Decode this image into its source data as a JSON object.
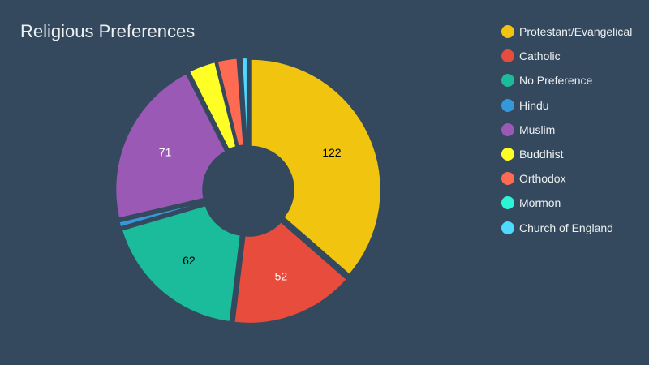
{
  "title": "Religious Preferences",
  "colors": {
    "background": "#34495e",
    "text": "#ecf0f1"
  },
  "legend": [
    {
      "label": "Protestant/Evangelical",
      "color": "#f1c40f"
    },
    {
      "label": "Catholic",
      "color": "#e74c3c"
    },
    {
      "label": "No Preference",
      "color": "#1abc9c"
    },
    {
      "label": "Hindu",
      "color": "#3498db"
    },
    {
      "label": "Muslim",
      "color": "#9b59b6"
    },
    {
      "label": "Buddhist",
      "color": "#ffff26"
    },
    {
      "label": "Orthodox",
      "color": "#ff6a52"
    },
    {
      "label": "Mormon",
      "color": "#2cf5d7"
    },
    {
      "label": "Church of England",
      "color": "#4ed9ff"
    }
  ],
  "chart_data": {
    "type": "pie",
    "subtype": "doughnut",
    "title": "Religious Preferences",
    "categories": [
      "Protestant/Evangelical",
      "Catholic",
      "No Preference",
      "Hindu",
      "Muslim",
      "Buddhist",
      "Orthodox",
      "Mormon",
      "Church of England"
    ],
    "values": [
      122,
      52,
      62,
      3,
      71,
      12,
      9,
      1,
      3
    ],
    "colors": [
      "#f1c40f",
      "#e74c3c",
      "#1abc9c",
      "#3498db",
      "#9b59b6",
      "#ffff26",
      "#ff6a52",
      "#2cf5d7",
      "#4ed9ff"
    ],
    "data_labels": [
      {
        "category": "Protestant/Evangelical",
        "text": "122",
        "color": "#000000"
      },
      {
        "category": "Catholic",
        "text": "52",
        "color": "#ffffff"
      },
      {
        "category": "No Preference",
        "text": "62",
        "color": "#000000"
      },
      {
        "category": "Muslim",
        "text": "71",
        "color": "#ffffff"
      }
    ],
    "legend_position": "right"
  }
}
